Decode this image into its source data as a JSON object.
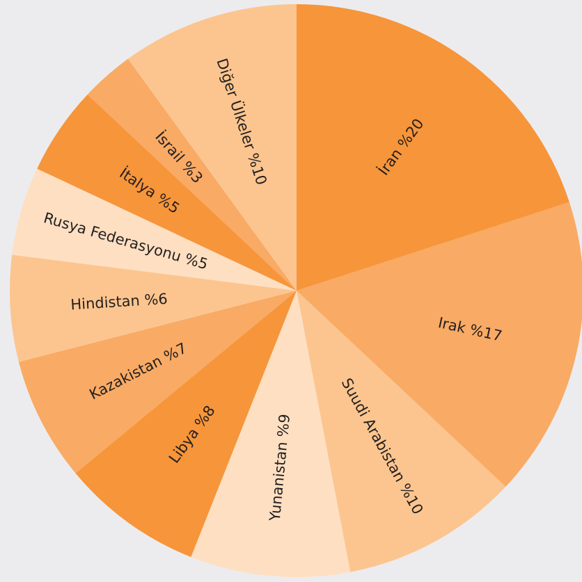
{
  "chart_data": {
    "type": "pie",
    "start_angle_deg": 0,
    "direction": "clockwise",
    "slices": [
      {
        "label": "İran %20",
        "value": 20,
        "color": "#F7953A"
      },
      {
        "label": "Irak %17",
        "value": 17,
        "color": "#F9AA64"
      },
      {
        "label": "Suudi Arabistan %10",
        "value": 10,
        "color": "#FCC58F"
      },
      {
        "label": "Yunanistan %9",
        "value": 9,
        "color": "#FEDFC1"
      },
      {
        "label": "Libya %8",
        "value": 8,
        "color": "#F7953A"
      },
      {
        "label": "Kazakistan %7",
        "value": 7,
        "color": "#F9AA64"
      },
      {
        "label": "Hindistan %6",
        "value": 6,
        "color": "#FCC58F"
      },
      {
        "label": "Rusya Federasyonu %5",
        "value": 5,
        "color": "#FEDFC1"
      },
      {
        "label": "İtalya %5",
        "value": 5,
        "color": "#F7953A"
      },
      {
        "label": "İsrail %3",
        "value": 3,
        "color": "#F9AA64"
      },
      {
        "label": "Diğer Ülkeler %10",
        "value": 10,
        "color": "#FCC58F"
      }
    ]
  }
}
